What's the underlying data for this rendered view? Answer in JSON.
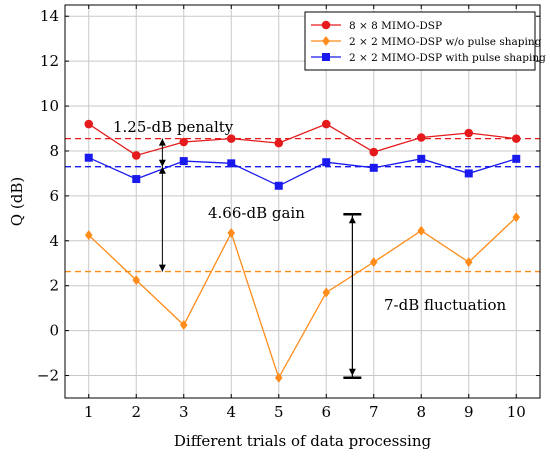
{
  "chart_data": {
    "type": "line",
    "xlabel": "Different trials of data processing",
    "ylabel": "Q (dB)",
    "xlim": [
      0.5,
      10.5
    ],
    "ylim": [
      -3,
      14.5
    ],
    "x_ticks": [
      1,
      2,
      3,
      4,
      5,
      6,
      7,
      8,
      9,
      10
    ],
    "y_ticks": [
      -2,
      0,
      2,
      4,
      6,
      8,
      10,
      12,
      14
    ],
    "y_tick_labels": [
      "−2",
      "0",
      "2",
      "4",
      "6",
      "8",
      "10",
      "12",
      "14"
    ],
    "grid": true,
    "legend_position": "top-right",
    "x": [
      1,
      2,
      3,
      4,
      5,
      6,
      7,
      8,
      9,
      10
    ],
    "series": [
      {
        "name": "8 × 8 MIMO-DSP",
        "color": "#e41a1c",
        "marker": "circle",
        "values": [
          9.2,
          7.8,
          8.4,
          8.55,
          8.35,
          9.2,
          7.95,
          8.6,
          8.8,
          8.55
        ],
        "mean": 8.55
      },
      {
        "name": "2 × 2 MIMO-DSP w/o pulse shaping",
        "color": "#ff8c1a",
        "marker": "diamond",
        "values": [
          4.25,
          2.25,
          0.25,
          4.35,
          -2.1,
          1.7,
          3.05,
          4.45,
          3.05,
          5.05
        ],
        "mean": 2.63
      },
      {
        "name": "2 × 2 MIMO-DSP with pulse shaping",
        "color": "#1a1aee",
        "marker": "square",
        "values": [
          7.7,
          6.75,
          7.55,
          7.45,
          6.45,
          7.5,
          7.25,
          7.65,
          7.0,
          7.65
        ],
        "mean": 7.3
      }
    ],
    "annotations": [
      {
        "text": "1.25-dB penalty"
      },
      {
        "text": "4.66-dB gain"
      },
      {
        "text": "7-dB fluctuation"
      }
    ]
  }
}
